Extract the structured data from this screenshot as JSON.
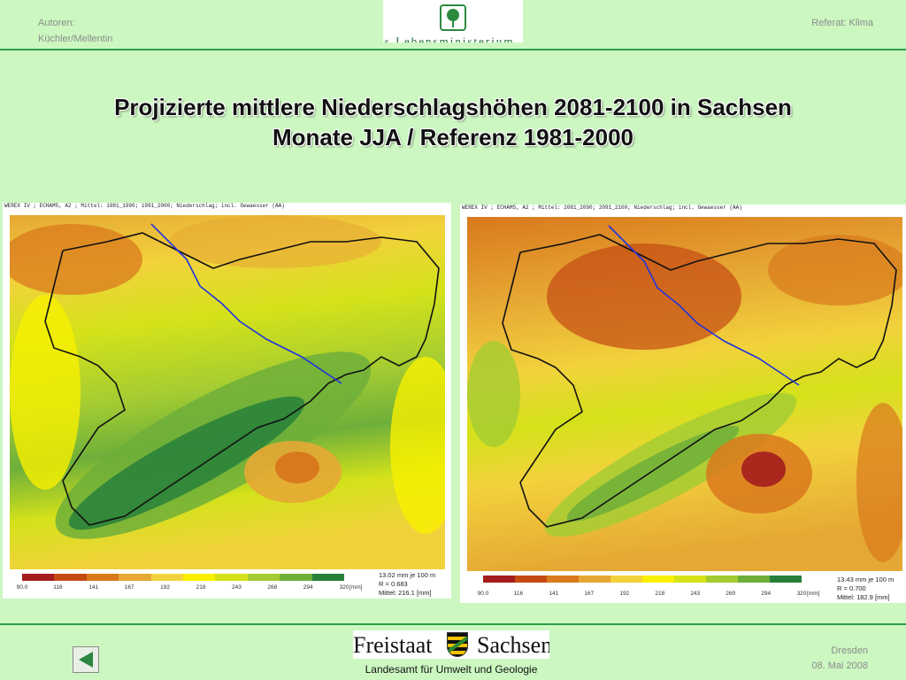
{
  "header": {
    "authors_label": "Autoren:",
    "authors_names": "Küchler/Mellentin",
    "topic": "Referat: Klima",
    "logo_text": "as Lebensministerium",
    "logo_icon": "tree-icon"
  },
  "title": {
    "line1": "Projizierte mittlere Niederschlagshöhen 2081-2100 in Sachsen",
    "line2": "Monate JJA / Referenz 1981-2000"
  },
  "maps": [
    {
      "header": "WEREX IV ; ECHAM5, A2 ; Mittel: 1981_1990; 1991_2000; Niederschlag; incl. Gewaesser (AA)",
      "ticks": [
        "90.0",
        "116",
        "141",
        "167",
        "192",
        "218",
        "243",
        "268",
        "294",
        "320"
      ],
      "unit": "[mm]",
      "stats": [
        "13.02 mm je 100 m",
        "R = 0.683",
        "Mittel: 216.1 [mm]"
      ],
      "colors": [
        "#a31d1d",
        "#c44a12",
        "#d9791d",
        "#e6a834",
        "#f2d23c",
        "#f8f000",
        "#d4e21a",
        "#a4cc32",
        "#6eaf3a",
        "#27803a"
      ]
    },
    {
      "header": "WEREX IV ; ECHAM5, A2 ; Mittel: 2081_2090; 2091_2100; Niederschlag; incl. Gewaesser (AA)",
      "ticks": [
        "90.0",
        "116",
        "141",
        "167",
        "192",
        "218",
        "243",
        "269",
        "294",
        "320"
      ],
      "unit": "[mm]",
      "stats": [
        "13.43 mm je 100 m",
        "R = 0.700",
        "Mittel: 182.9 [mm]"
      ],
      "colors": [
        "#a31d1d",
        "#c44a12",
        "#d9791d",
        "#e6a834",
        "#f2d23c",
        "#f8f000",
        "#d4e21a",
        "#a4cc32",
        "#6eaf3a",
        "#27803a"
      ]
    }
  ],
  "footer": {
    "logo_word1": "Freistaat",
    "logo_word2": "Sachsen",
    "agency": "Landesamt für Umwelt und Geologie",
    "city": "Dresden",
    "date": "08. Mai 2008",
    "back_icon": "back-arrow-icon"
  }
}
